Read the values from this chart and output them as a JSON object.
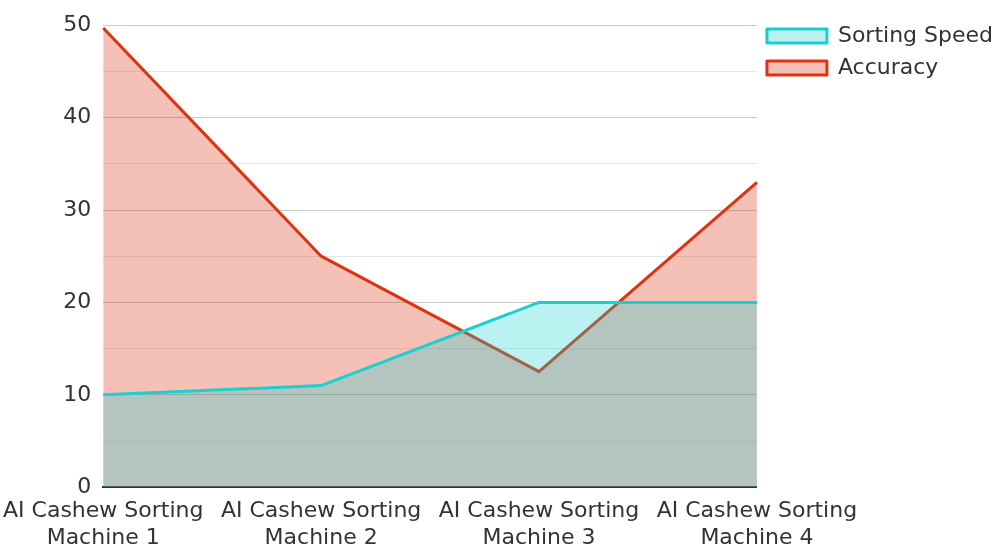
{
  "chart_data": {
    "type": "area",
    "categories": [
      "AI Cashew Sorting Machine 1",
      "AI Cashew Sorting Machine 2",
      "AI Cashew Sorting Machine 3",
      "AI Cashew Sorting Machine 4"
    ],
    "series": [
      {
        "name": "Sorting Speed",
        "color": "#1ccfcf",
        "values": [
          10,
          11,
          20,
          20
        ]
      },
      {
        "name": "Accuracy",
        "color": "#dd3311",
        "values": [
          49.7,
          25,
          12.5,
          33
        ]
      }
    ],
    "ylim": [
      0,
      50
    ],
    "yticks": [
      0,
      {
        "value": 5,
        "label": null
      },
      10,
      {
        "value": 15,
        "label": null
      },
      20,
      {
        "value": 25,
        "label": null
      },
      30,
      {
        "value": 35,
        "label": null
      },
      40,
      {
        "value": 45,
        "label": null
      },
      50
    ],
    "grid": "y",
    "legend": "top right",
    "marker": "none"
  }
}
